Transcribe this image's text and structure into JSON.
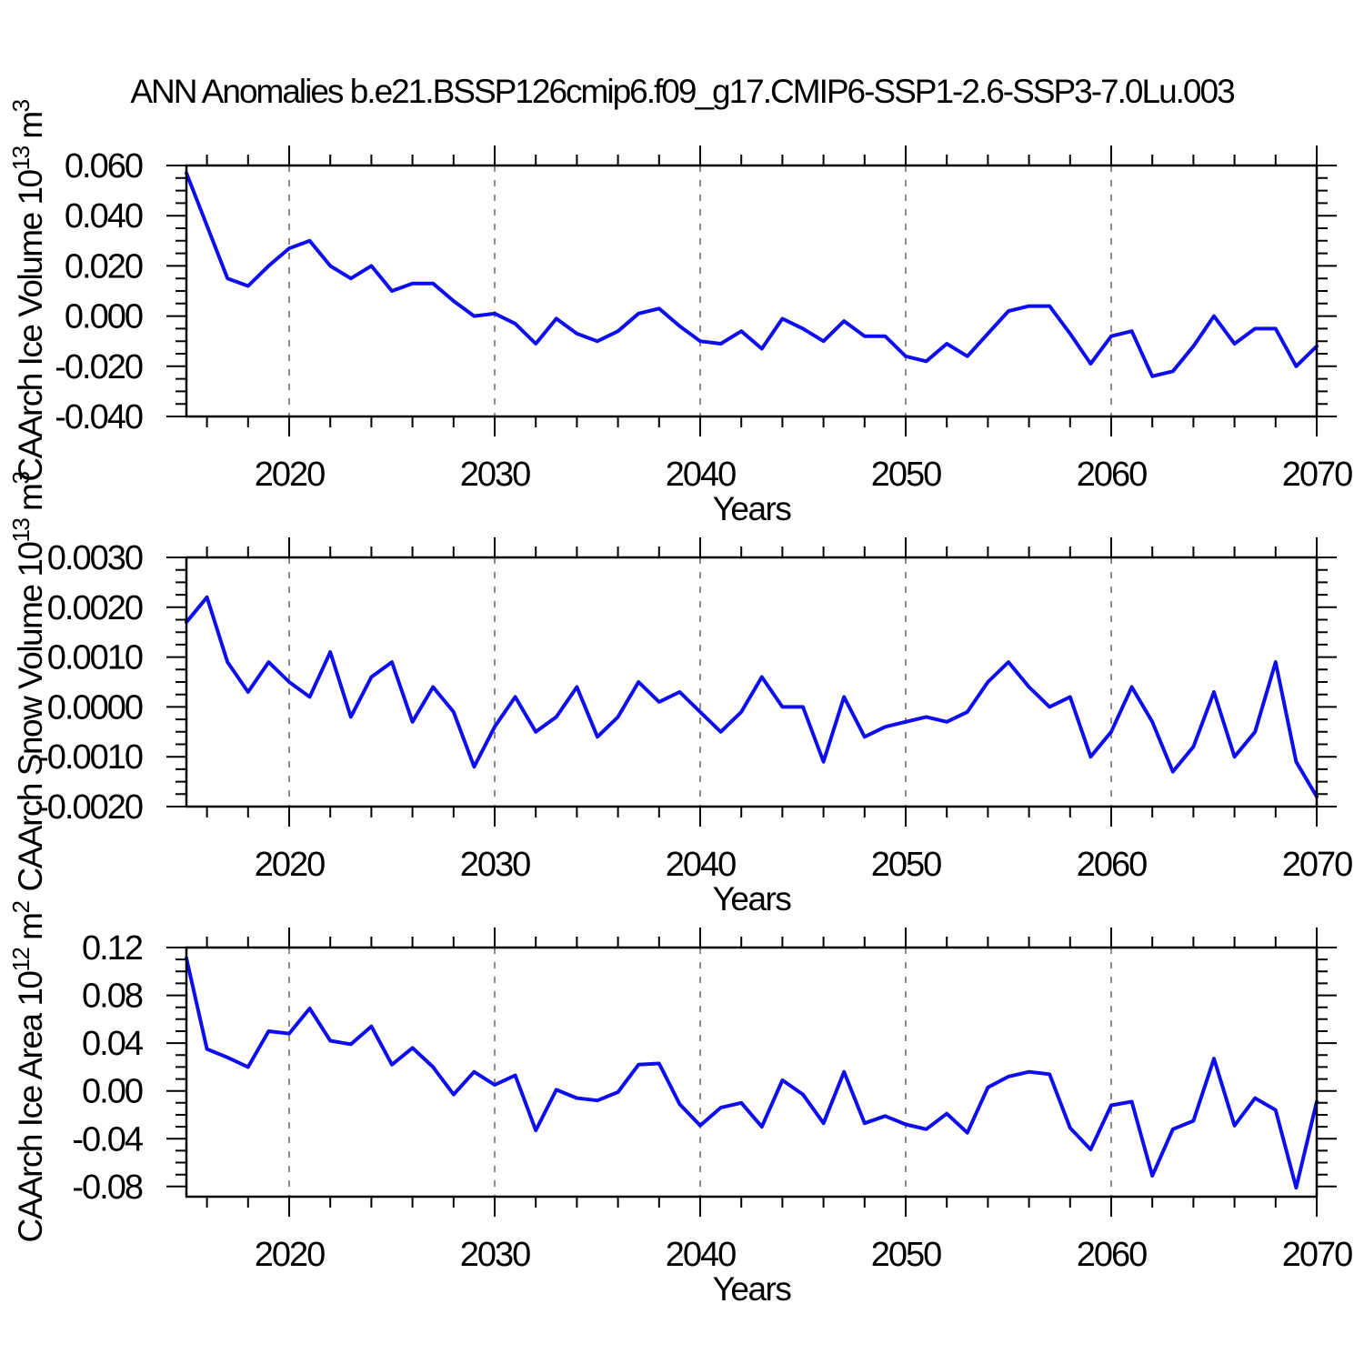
{
  "page": {
    "background": "#ffffff"
  },
  "chart_data": {
    "type": "line",
    "title": "ANN Anomalies b.e21.BSSP126cmip6.f09_g17.CMIP6-SSP1-2.6-SSP3-7.0Lu.003",
    "line_color": "#0d0df0",
    "gridline_color": "#8c8c8c",
    "axis_color": "#000000",
    "legend": "none",
    "grid": "vertical-dashed-decades",
    "x": {
      "label": "Years",
      "min": 2015,
      "max": 2070,
      "major_ticks": [
        2020,
        2030,
        2040,
        2050,
        2060,
        2070
      ],
      "major_tick_labels": [
        "2020",
        "2030",
        "2040",
        "2050",
        "2060",
        "2070"
      ],
      "minor_step": 2,
      "gridlines": [
        2020,
        2030,
        2040,
        2050,
        2060
      ]
    },
    "years": [
      2015,
      2016,
      2017,
      2018,
      2019,
      2020,
      2021,
      2022,
      2023,
      2024,
      2025,
      2026,
      2027,
      2028,
      2029,
      2030,
      2031,
      2032,
      2033,
      2034,
      2035,
      2036,
      2037,
      2038,
      2039,
      2040,
      2041,
      2042,
      2043,
      2044,
      2045,
      2046,
      2047,
      2048,
      2049,
      2050,
      2051,
      2052,
      2053,
      2054,
      2055,
      2056,
      2057,
      2058,
      2059,
      2060,
      2061,
      2062,
      2063,
      2064,
      2065,
      2066,
      2067,
      2068,
      2069,
      2070
    ],
    "panels": [
      {
        "id": "ice-volume",
        "ylabel": "CAArch Ice Volume 10^13 m^3",
        "xlabel": "Years",
        "ylim": [
          -0.04,
          0.06
        ],
        "ytick_values": [
          0.06,
          0.04,
          0.02,
          0.0,
          -0.02,
          -0.04
        ],
        "ytick_labels": [
          "0.060",
          "0.040",
          "0.020",
          "0.000",
          "-0.020",
          "-0.040"
        ],
        "yminor_step": 0.005,
        "values": [
          0.057,
          0.036,
          0.015,
          0.012,
          0.02,
          0.027,
          0.03,
          0.02,
          0.015,
          0.02,
          0.01,
          0.013,
          0.013,
          0.006,
          0.0,
          0.001,
          -0.003,
          -0.011,
          -0.001,
          -0.007,
          -0.01,
          -0.006,
          0.001,
          0.003,
          -0.004,
          -0.01,
          -0.011,
          -0.006,
          -0.013,
          -0.001,
          -0.005,
          -0.01,
          -0.002,
          -0.008,
          -0.008,
          -0.016,
          -0.018,
          -0.011,
          -0.016,
          -0.007,
          0.002,
          0.004,
          0.004,
          -0.007,
          -0.019,
          -0.008,
          -0.006,
          -0.024,
          -0.022,
          -0.012,
          0.0,
          -0.011,
          -0.005,
          -0.005,
          -0.02,
          -0.012
        ]
      },
      {
        "id": "snow-volume",
        "ylabel": "CAArch Snow Volume 10^13 m^3",
        "xlabel": "Years",
        "ylim": [
          -0.002,
          0.003
        ],
        "ytick_values": [
          0.003,
          0.002,
          0.001,
          0.0,
          -0.001,
          -0.002
        ],
        "ytick_labels": [
          "0.0030",
          "0.0020",
          "0.0010",
          "0.0000",
          "-0.0010",
          "-0.0020"
        ],
        "yminor_step": 0.00025,
        "values": [
          0.0017,
          0.0022,
          0.0009,
          0.0003,
          0.0009,
          0.0005,
          0.0002,
          0.0011,
          -0.0002,
          0.0006,
          0.0009,
          -0.0003,
          0.0004,
          -0.0001,
          -0.0012,
          -0.0004,
          0.0002,
          -0.0005,
          -0.0002,
          0.0004,
          -0.0006,
          -0.0002,
          0.0005,
          0.0001,
          0.0003,
          -0.0001,
          -0.0005,
          -0.0001,
          0.0006,
          0.0,
          0.0,
          -0.0011,
          0.0002,
          -0.0006,
          -0.0004,
          -0.0003,
          -0.0002,
          -0.0003,
          -0.0001,
          0.0005,
          0.0009,
          0.0004,
          0.0,
          0.0002,
          -0.001,
          -0.0005,
          0.0004,
          -0.0003,
          -0.0013,
          -0.0008,
          0.0003,
          -0.001,
          -0.0005,
          0.0009,
          -0.0011,
          -0.0018
        ]
      },
      {
        "id": "ice-area",
        "ylabel": "CAArch Ice Area 10^12 m^2",
        "xlabel": "Years",
        "ylim": [
          -0.0885,
          0.12
        ],
        "ytick_values": [
          0.12,
          0.08,
          0.04,
          0.0,
          -0.04,
          -0.08
        ],
        "ytick_labels": [
          "0.12",
          "0.08",
          "0.04",
          "0.00",
          "-0.04",
          "-0.08"
        ],
        "yminor_step": 0.01,
        "values": [
          0.111,
          0.035,
          0.028,
          0.02,
          0.05,
          0.048,
          0.069,
          0.042,
          0.039,
          0.054,
          0.022,
          0.036,
          0.02,
          -0.003,
          0.016,
          0.005,
          0.013,
          -0.033,
          0.001,
          -0.006,
          -0.008,
          -0.001,
          0.022,
          0.023,
          -0.011,
          -0.029,
          -0.014,
          -0.01,
          -0.03,
          0.009,
          -0.003,
          -0.027,
          0.016,
          -0.027,
          -0.021,
          -0.028,
          -0.032,
          -0.019,
          -0.035,
          0.003,
          0.012,
          0.016,
          0.014,
          -0.031,
          -0.049,
          -0.012,
          -0.009,
          -0.071,
          -0.032,
          -0.025,
          0.027,
          -0.029,
          -0.006,
          -0.016,
          -0.081,
          -0.009
        ]
      }
    ]
  }
}
